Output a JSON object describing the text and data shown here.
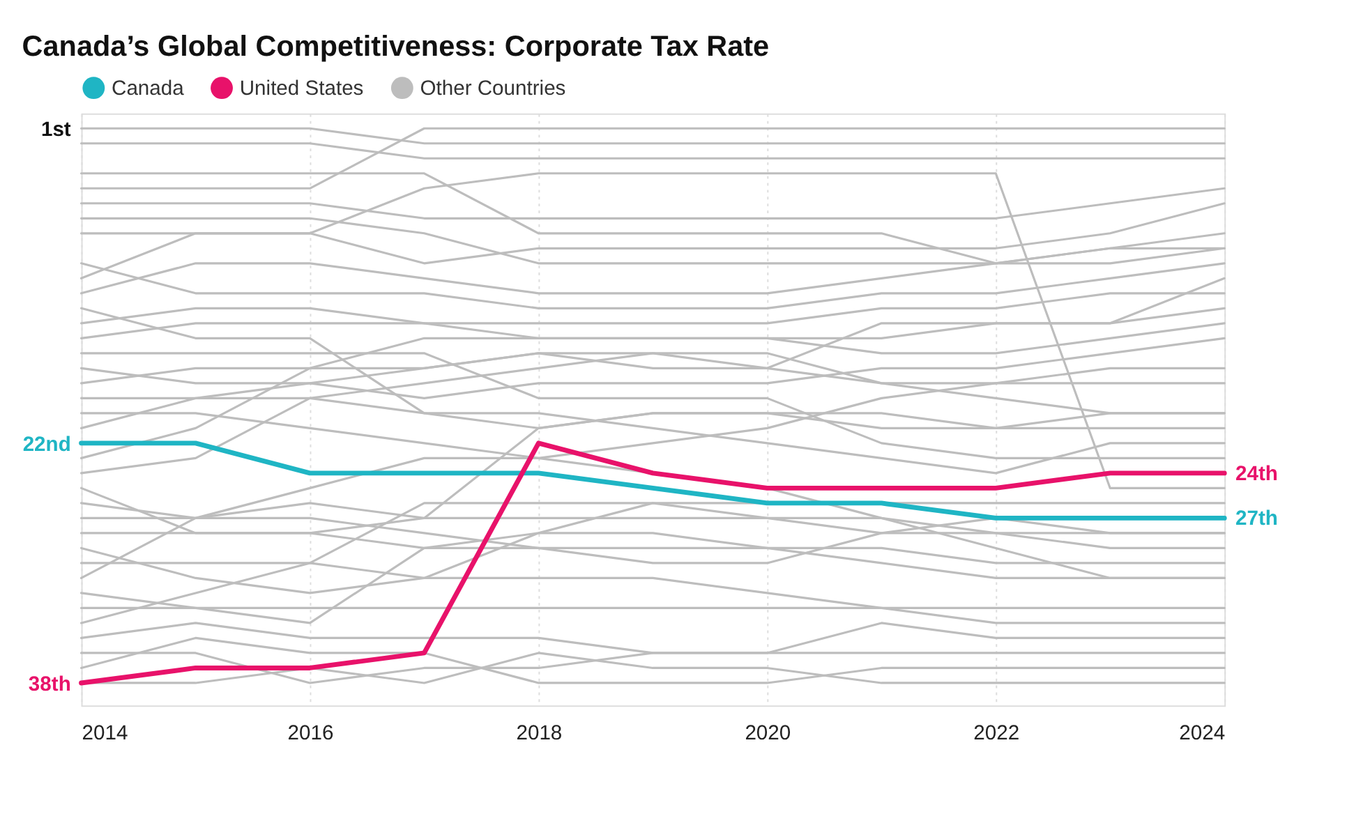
{
  "chart_data": {
    "type": "line",
    "title": "Canada’s Global Competitiveness: Corporate Tax Rate",
    "x": [
      2014,
      2015,
      2016,
      2017,
      2018,
      2019,
      2020,
      2021,
      2022,
      2023,
      2024
    ],
    "xlim": [
      2014,
      2024
    ],
    "xticks": [
      2014,
      2016,
      2018,
      2020,
      2022,
      2024
    ],
    "ylim": [
      39.5,
      0
    ],
    "yticks": [
      {
        "value": 1,
        "label": "1st"
      },
      {
        "value": 22,
        "label": "22nd"
      },
      {
        "value": 38,
        "label": "38th"
      }
    ],
    "grid": "x",
    "legend": "top left",
    "marker": "none",
    "line_style": "solid",
    "annotations": [
      {
        "text": "24th",
        "x": 2024,
        "y": 24
      },
      {
        "text": "27th",
        "x": 2024,
        "y": 27
      }
    ],
    "series": [
      {
        "name": "Canada",
        "color": "#1fb5c4",
        "values": [
          22,
          22,
          24,
          24,
          24,
          25,
          26,
          26,
          27,
          27,
          27
        ]
      },
      {
        "name": "United States",
        "color": "#e8126a",
        "values": [
          38,
          37,
          37,
          36,
          22,
          24,
          25,
          25,
          25,
          24,
          24
        ]
      },
      {
        "name": "Other Countries",
        "color": "#bdbdbd",
        "values": [
          1,
          1,
          1,
          2,
          2,
          2,
          2,
          2,
          2,
          2,
          2
        ]
      },
      {
        "color": "#bdbdbd",
        "values": [
          2,
          2,
          2,
          3,
          3,
          3,
          3,
          3,
          3,
          3,
          3
        ]
      },
      {
        "color": "#bdbdbd",
        "values": [
          4,
          4,
          4,
          4,
          8,
          8,
          8,
          8,
          10,
          10,
          9
        ]
      },
      {
        "color": "#bdbdbd",
        "values": [
          5,
          5,
          5,
          1,
          1,
          1,
          1,
          1,
          1,
          1,
          1
        ]
      },
      {
        "color": "#bdbdbd",
        "values": [
          8,
          8,
          8,
          10,
          9,
          9,
          9,
          9,
          9,
          8,
          6
        ]
      },
      {
        "color": "#bdbdbd",
        "values": [
          11,
          8,
          8,
          5,
          4,
          4,
          4,
          4,
          4,
          25,
          25
        ]
      },
      {
        "color": "#bdbdbd",
        "values": [
          14,
          13,
          13,
          14,
          15,
          15,
          15,
          15,
          14,
          14,
          11
        ]
      },
      {
        "color": "#bdbdbd",
        "values": [
          15,
          14,
          14,
          14,
          14,
          14,
          14,
          13,
          13,
          12,
          12
        ]
      },
      {
        "color": "#bdbdbd",
        "values": [
          17,
          18,
          18,
          19,
          18,
          18,
          18,
          17,
          17,
          16,
          15
        ]
      },
      {
        "color": "#bdbdbd",
        "values": [
          18,
          17,
          17,
          15,
          15,
          15,
          15,
          16,
          16,
          15,
          14
        ]
      },
      {
        "color": "#bdbdbd",
        "values": [
          19,
          19,
          19,
          20,
          21,
          20,
          20,
          20,
          21,
          20,
          20
        ]
      },
      {
        "color": "#bdbdbd",
        "values": [
          21,
          19,
          18,
          17,
          16,
          16,
          17,
          14,
          14,
          14,
          13
        ]
      },
      {
        "color": "#bdbdbd",
        "values": [
          23,
          21,
          17,
          17,
          16,
          17,
          17,
          18,
          18,
          17,
          17
        ]
      },
      {
        "color": "#bdbdbd",
        "values": [
          24,
          23,
          19,
          18,
          17,
          16,
          16,
          18,
          19,
          20,
          20
        ]
      },
      {
        "color": "#bdbdbd",
        "values": [
          25,
          28,
          28,
          27,
          21,
          20,
          20,
          21,
          21,
          21,
          21
        ]
      },
      {
        "color": "#bdbdbd",
        "values": [
          26,
          27,
          27,
          28,
          29,
          30,
          30,
          28,
          27,
          28,
          28
        ]
      },
      {
        "color": "#bdbdbd",
        "values": [
          28,
          28,
          28,
          29,
          29,
          29,
          29,
          29,
          30,
          30,
          30
        ]
      },
      {
        "color": "#bdbdbd",
        "values": [
          29,
          31,
          32,
          31,
          28,
          28,
          29,
          30,
          31,
          31,
          31
        ]
      },
      {
        "color": "#bdbdbd",
        "values": [
          30,
          30,
          30,
          31,
          31,
          31,
          32,
          33,
          34,
          34,
          34
        ]
      },
      {
        "color": "#bdbdbd",
        "values": [
          31,
          27,
          25,
          23,
          23,
          22,
          21,
          19,
          18,
          18,
          18
        ]
      },
      {
        "color": "#bdbdbd",
        "values": [
          32,
          33,
          34,
          29,
          28,
          26,
          27,
          28,
          28,
          28,
          28
        ]
      },
      {
        "color": "#bdbdbd",
        "values": [
          33,
          33,
          33,
          33,
          33,
          33,
          33,
          33,
          33,
          33,
          33
        ]
      },
      {
        "color": "#bdbdbd",
        "values": [
          34,
          32,
          30,
          26,
          26,
          26,
          26,
          26,
          26,
          26,
          26
        ]
      },
      {
        "color": "#bdbdbd",
        "values": [
          35,
          34,
          35,
          35,
          35,
          36,
          36,
          34,
          35,
          35,
          35
        ]
      },
      {
        "color": "#bdbdbd",
        "values": [
          36,
          36,
          38,
          37,
          37,
          36,
          36,
          36,
          36,
          36,
          36
        ]
      },
      {
        "color": "#bdbdbd",
        "values": [
          37,
          35,
          36,
          36,
          38,
          38,
          38,
          37,
          37,
          37,
          37
        ]
      },
      {
        "color": "#bdbdbd",
        "values": [
          12,
          10,
          10,
          11,
          12,
          12,
          12,
          11,
          10,
          9,
          8
        ]
      },
      {
        "color": "#bdbdbd",
        "values": [
          10,
          12,
          12,
          12,
          13,
          13,
          13,
          12,
          12,
          11,
          10
        ]
      },
      {
        "color": "#bdbdbd",
        "values": [
          20,
          20,
          21,
          22,
          23,
          24,
          25,
          27,
          28,
          29,
          29
        ]
      },
      {
        "color": "#bdbdbd",
        "values": [
          27,
          27,
          26,
          27,
          27,
          27,
          27,
          27,
          29,
          31,
          31
        ]
      },
      {
        "color": "#bdbdbd",
        "values": [
          16,
          16,
          16,
          16,
          19,
          19,
          19,
          22,
          23,
          23,
          23
        ]
      },
      {
        "color": "#bdbdbd",
        "values": [
          13,
          15,
          15,
          20,
          20,
          21,
          22,
          23,
          24,
          22,
          22
        ]
      },
      {
        "color": "#bdbdbd",
        "values": [
          6,
          6,
          6,
          7,
          7,
          7,
          7,
          7,
          7,
          6,
          5
        ]
      },
      {
        "color": "#bdbdbd",
        "values": [
          7,
          7,
          7,
          8,
          10,
          10,
          10,
          10,
          10,
          9,
          9
        ]
      },
      {
        "color": "#bdbdbd",
        "values": [
          38,
          38,
          37,
          38,
          36,
          37,
          37,
          38,
          38,
          38,
          38
        ]
      }
    ]
  }
}
